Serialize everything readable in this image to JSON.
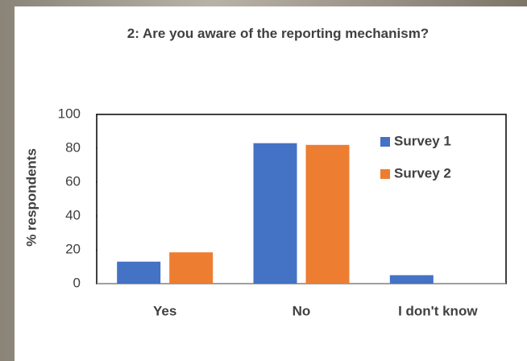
{
  "chart_data": {
    "type": "bar",
    "title": "2: Are you aware of the reporting mechanism?",
    "y_label": "% respondents",
    "categories": [
      "Yes",
      "No",
      "I don't know"
    ],
    "series": [
      {
        "name": "Survey 1",
        "color": "#4472c4",
        "values": [
          13,
          83,
          5
        ]
      },
      {
        "name": "Survey 2",
        "color": "#ed7d31",
        "values": [
          18.5,
          82,
          0
        ]
      }
    ],
    "ylim": [
      0,
      100
    ],
    "yticks": [
      0,
      20,
      40,
      60,
      80,
      100
    ],
    "grid": false,
    "legend": "top-right"
  }
}
